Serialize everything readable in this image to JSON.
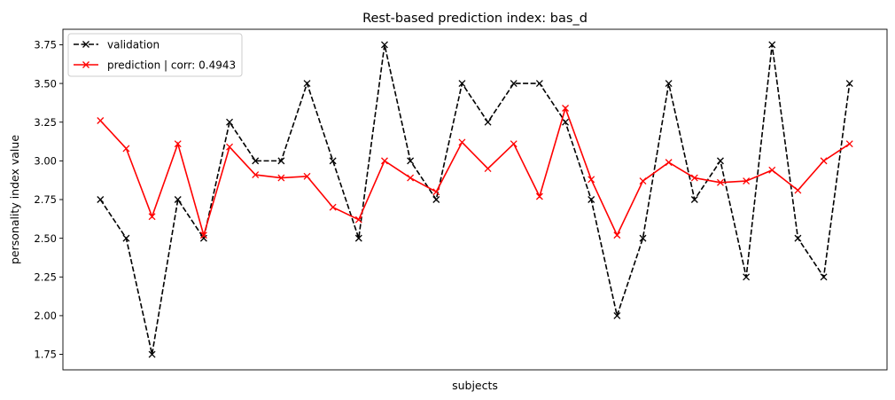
{
  "chart_data": {
    "type": "line",
    "title": "Rest-based prediction index: bas_d",
    "xlabel": "subjects",
    "ylabel": "personality index value",
    "xlim": [
      -1.45,
      30.45
    ],
    "ylim": [
      1.65,
      3.85
    ],
    "yticks": [
      "1.75",
      "2.00",
      "2.25",
      "2.50",
      "2.75",
      "3.00",
      "3.25",
      "3.50",
      "3.75"
    ],
    "xticks": [],
    "grid": false,
    "legend_position": "top-left",
    "series": [
      {
        "name": "validation",
        "color": "#000000",
        "linestyle": "dashed",
        "marker": "x",
        "values": [
          2.75,
          2.5,
          1.75,
          2.75,
          2.5,
          3.25,
          3.0,
          3.0,
          3.5,
          3.0,
          2.5,
          3.75,
          3.0,
          2.75,
          3.5,
          3.25,
          3.5,
          3.5,
          3.25,
          2.75,
          2.0,
          2.5,
          3.5,
          2.75,
          3.0,
          2.25,
          3.75,
          2.5,
          2.25,
          3.5
        ]
      },
      {
        "name": "prediction | corr: 0.4943",
        "color": "#ff0000",
        "linestyle": "solid",
        "marker": "x",
        "values": [
          3.26,
          3.08,
          2.64,
          3.11,
          2.52,
          3.09,
          2.91,
          2.89,
          2.9,
          2.7,
          2.62,
          3.0,
          2.89,
          2.8,
          3.12,
          2.95,
          3.11,
          2.77,
          3.34,
          2.88,
          2.52,
          2.87,
          2.99,
          2.89,
          2.86,
          2.87,
          2.94,
          2.81,
          3.0,
          3.11
        ]
      }
    ]
  }
}
